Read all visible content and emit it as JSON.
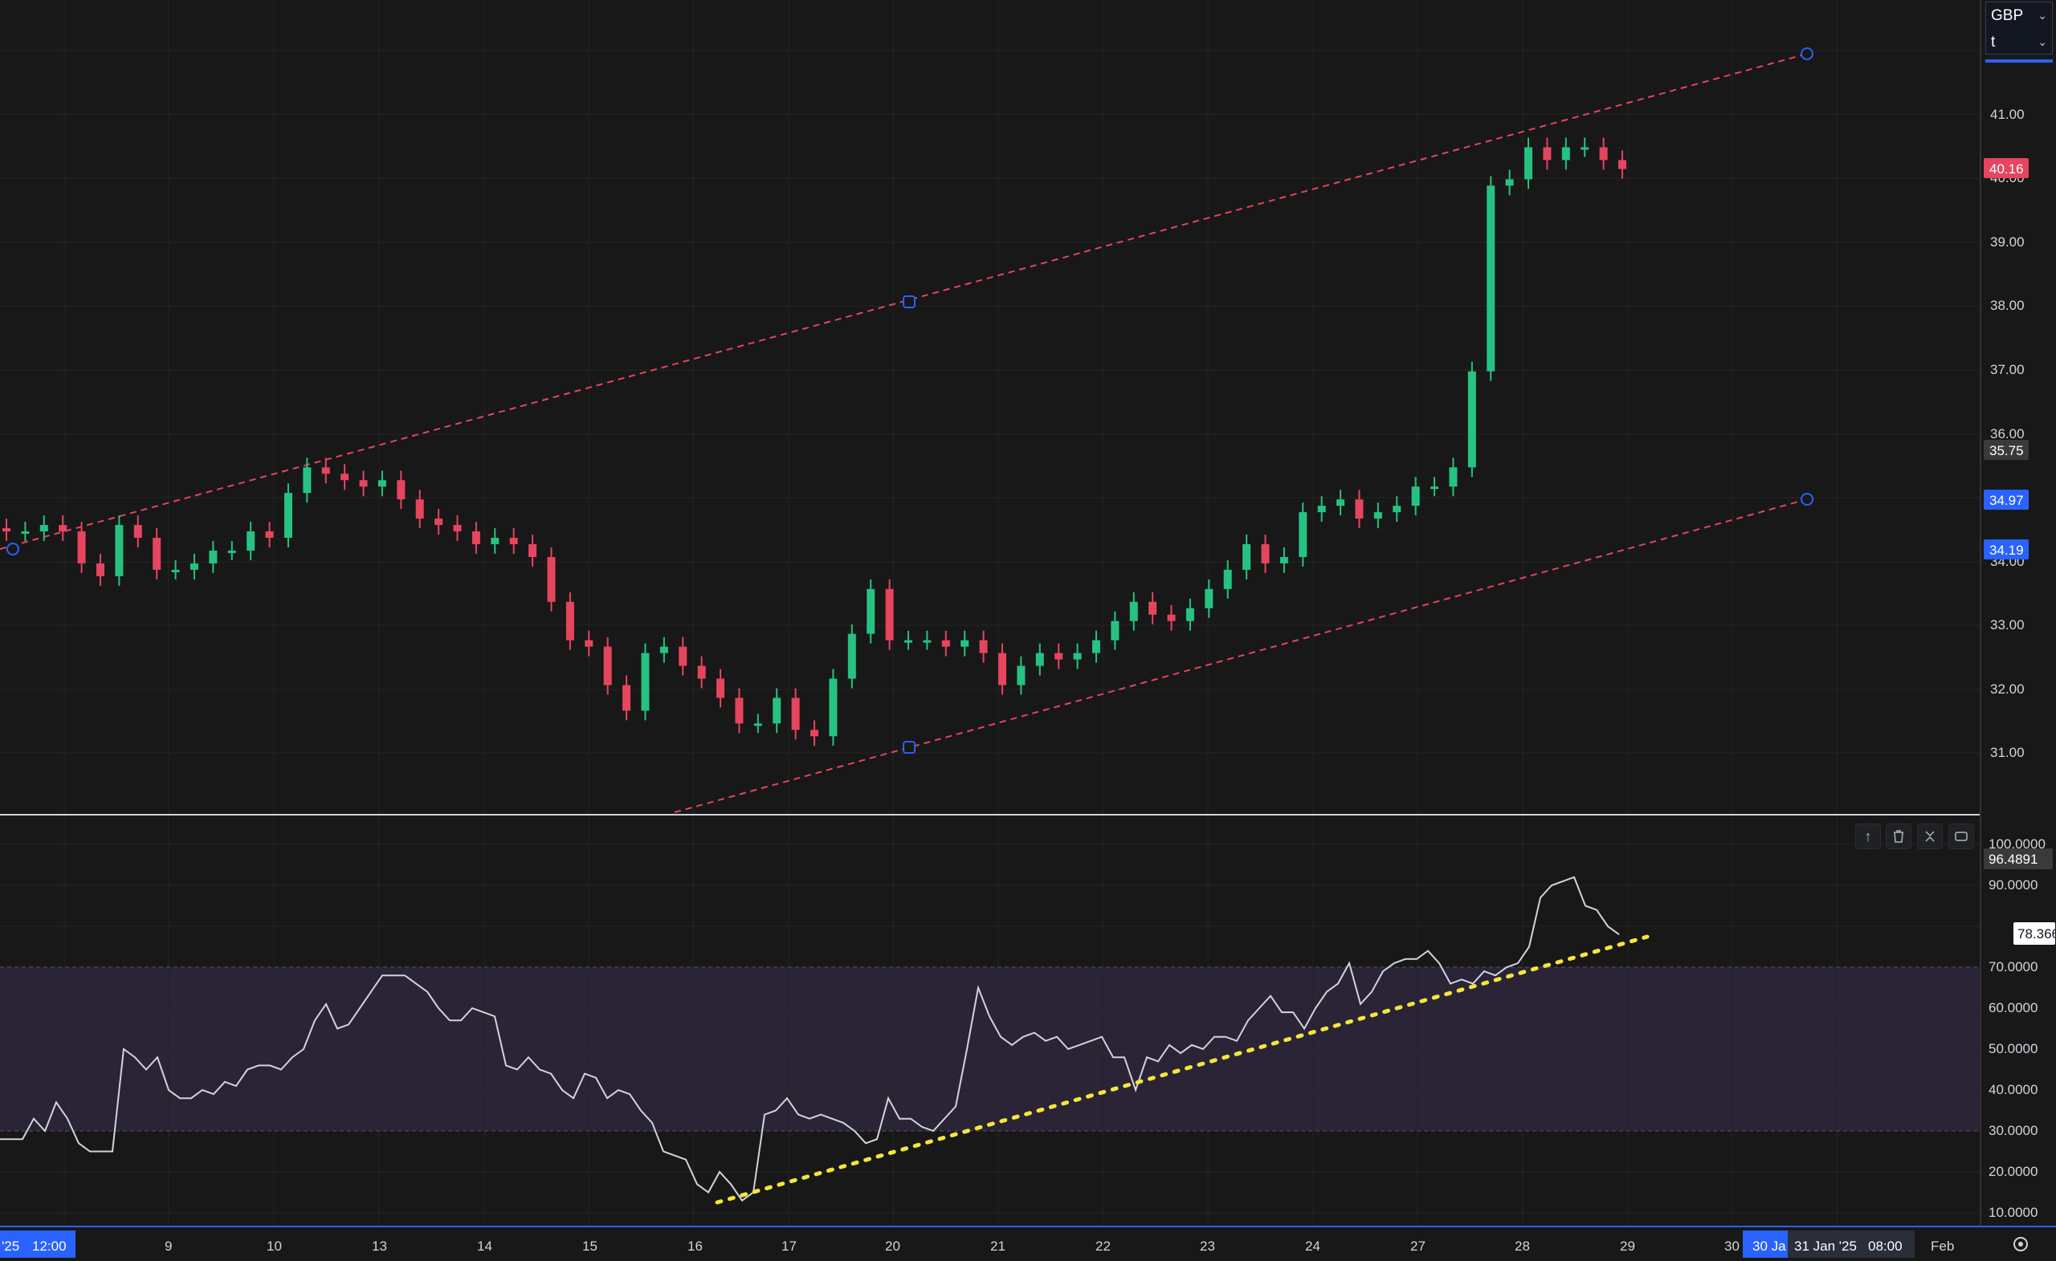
{
  "toolbar": {
    "currency": "GBP",
    "secondary": "t"
  },
  "price_axis": {
    "ticks": [
      "41.00",
      "40.00",
      "39.00",
      "38.00",
      "37.00",
      "36.00",
      "34.00",
      "33.00",
      "32.00",
      "31.00"
    ],
    "last_price": "40.16",
    "mark_a": "35.75",
    "mark_b": "34.97",
    "mark_c": "34.19"
  },
  "rsi_axis": {
    "ticks": [
      "100.0000",
      "90.0000",
      "70.0000",
      "60.0000",
      "50.0000",
      "40.0000",
      "30.0000",
      "20.0000",
      "10.0000"
    ],
    "value_a": "96.4891",
    "value_b": "78.3666"
  },
  "time_axis": {
    "ticks": [
      "9",
      "10",
      "13",
      "14",
      "15",
      "16",
      "17",
      "20",
      "21",
      "22",
      "23",
      "24",
      "27",
      "28",
      "29",
      "30",
      "Feb"
    ],
    "left_label": "'25",
    "left_time": "12:00",
    "cursor_label": "30 Ja",
    "cursor_date": "31 Jan '25",
    "cursor_time": "08:00"
  },
  "pane_tools": [
    "arrow-up-icon",
    "trash-icon",
    "collapse-icon",
    "maximize-icon"
  ],
  "colors": {
    "up": "#26c281",
    "down": "#e5455e",
    "channel": "#e5455e",
    "rsi_line": "#d1d4dc",
    "trend": "#f5e63a",
    "accent": "#2962ff"
  },
  "chart_data": [
    {
      "type": "candlestick",
      "x_labels": [
        "9",
        "10",
        "13",
        "14",
        "15",
        "16",
        "17",
        "20",
        "21",
        "22",
        "23",
        "24",
        "27",
        "28",
        "29",
        "30"
      ],
      "y_range": [
        30.1,
        42.8
      ],
      "close_series": [
        34.5,
        34.5,
        34.6,
        34.5,
        34.0,
        33.8,
        34.6,
        34.4,
        33.9,
        33.9,
        34.0,
        34.2,
        34.2,
        34.5,
        34.4,
        35.1,
        35.5,
        35.4,
        35.3,
        35.2,
        35.3,
        35.0,
        34.7,
        34.6,
        34.5,
        34.3,
        34.4,
        34.3,
        34.1,
        33.4,
        32.8,
        32.7,
        32.1,
        31.7,
        32.6,
        32.7,
        32.4,
        32.2,
        31.9,
        31.5,
        31.5,
        31.9,
        31.4,
        31.3,
        32.2,
        32.9,
        33.6,
        32.8,
        32.8,
        32.8,
        32.7,
        32.8,
        32.6,
        32.1,
        32.4,
        32.6,
        32.5,
        32.6,
        32.8,
        33.1,
        33.4,
        33.2,
        33.1,
        33.3,
        33.6,
        33.9,
        34.3,
        34.0,
        34.1,
        34.8,
        34.9,
        35.0,
        34.7,
        34.8,
        34.9,
        35.2,
        35.2,
        35.5,
        37.0,
        39.9,
        40.0,
        40.5,
        40.3,
        40.5,
        40.5,
        40.3,
        40.16
      ],
      "annotations": {
        "channel_upper": [
          [
            0,
            34.2
          ],
          [
            1378,
            41.1
          ]
        ],
        "channel_lower": [
          [
            515,
            29.9
          ],
          [
            1378,
            34.97
          ]
        ],
        "channel_mid_handle": [
          693,
          38.0
        ]
      }
    },
    {
      "type": "line",
      "name": "RSI",
      "y_range": [
        5,
        105
      ],
      "bands": [
        30,
        70
      ],
      "values": [
        28,
        28,
        28,
        33,
        30,
        37,
        33,
        27,
        25,
        25,
        25,
        50,
        48,
        45,
        48,
        40,
        38,
        38,
        40,
        39,
        42,
        41,
        45,
        46,
        46,
        45,
        48,
        50,
        57,
        61,
        55,
        56,
        60,
        64,
        68,
        68,
        68,
        66,
        64,
        60,
        57,
        57,
        60,
        59,
        58,
        46,
        45,
        48,
        45,
        44,
        40,
        38,
        44,
        43,
        38,
        40,
        39,
        35,
        32,
        25,
        24,
        23,
        17,
        15,
        20,
        17,
        13,
        15,
        34,
        35,
        38,
        34,
        33,
        34,
        33,
        32,
        30,
        27,
        28,
        38,
        33,
        33,
        31,
        30,
        33,
        36,
        50,
        65,
        58,
        53,
        51,
        53,
        54,
        52,
        53,
        50,
        51,
        52,
        53,
        48,
        48,
        40,
        48,
        47,
        51,
        49,
        51,
        50,
        53,
        53,
        52,
        57,
        60,
        63,
        59,
        59,
        55,
        60,
        64,
        66,
        71,
        61,
        64,
        69,
        71,
        72,
        72,
        74,
        71,
        66,
        67,
        66,
        69,
        68,
        70,
        71,
        75,
        87,
        90,
        91,
        92,
        85,
        84,
        80,
        78
      ],
      "trendline": [
        [
          547,
          12
        ],
        [
          1256,
          78
        ]
      ]
    }
  ]
}
